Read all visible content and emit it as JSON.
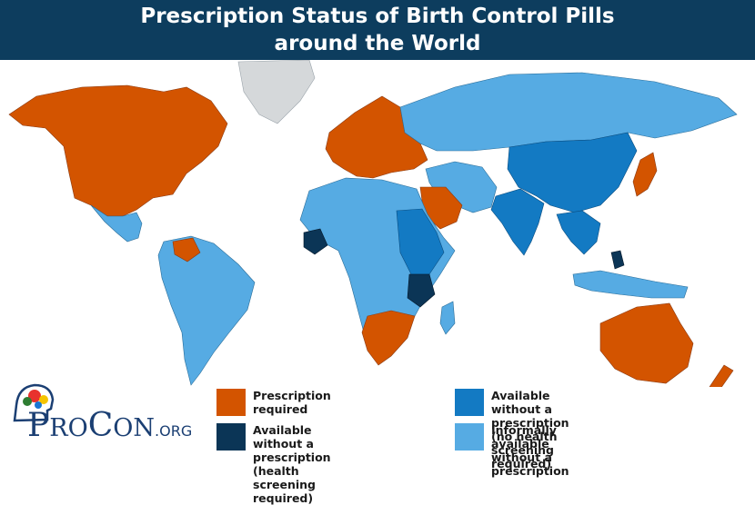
{
  "title": {
    "line1": "Prescription Status of Birth Control Pills",
    "line2": "around the World"
  },
  "colors": {
    "title_bg": "#0d3d5e",
    "prescription_required": "#d35400",
    "available_health_screening": "#0b3556",
    "available_no_screening": "#137ac3",
    "informally_available": "#56abe3",
    "no_data": "#d5d8da"
  },
  "legend": [
    {
      "key": "prescription_required",
      "line1": "Prescription required",
      "line2": ""
    },
    {
      "key": "available_health_screening",
      "line1": "Available without a prescription",
      "line2": "(health screening required)"
    },
    {
      "key": "available_no_screening",
      "line1": "Available without a prescription",
      "line2": "(no health screening required)"
    },
    {
      "key": "informally_available",
      "line1": "Informally available without a prescription",
      "line2": ""
    }
  ],
  "logo": {
    "brand_big_p": "P",
    "brand_ro": "RO",
    "brand_big_c": "C",
    "brand_on": "ON",
    "brand_org": ".ORG"
  }
}
